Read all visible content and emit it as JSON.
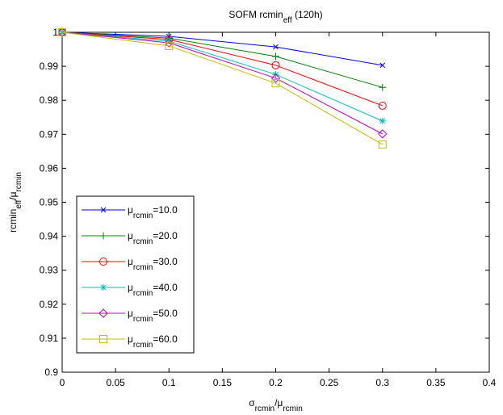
{
  "chart_data": {
    "type": "line",
    "title": [
      "SOFM rcmin",
      "eff",
      " (120h)"
    ],
    "xlabel": [
      "σ",
      "rcmin",
      "/μ",
      "rcmin"
    ],
    "ylabel": [
      "rcmin",
      "eff",
      "/μ",
      "rcmin"
    ],
    "x": [
      0,
      0.1,
      0.2,
      0.3
    ],
    "series": [
      {
        "name": [
          "μ",
          "rcmin",
          "=10.0"
        ],
        "color": "#0000ff",
        "marker": "x",
        "values": [
          1,
          0.9988,
          0.9957,
          0.9903
        ]
      },
      {
        "name": [
          "μ",
          "rcmin",
          "=20.0"
        ],
        "color": "#008000",
        "marker": "+",
        "values": [
          1,
          0.9983,
          0.9929,
          0.9838
        ]
      },
      {
        "name": [
          "μ",
          "rcmin",
          "=30.0"
        ],
        "color": "#ff0000",
        "marker": "o",
        "values": [
          1,
          0.9979,
          0.9903,
          0.9784
        ]
      },
      {
        "name": [
          "μ",
          "rcmin",
          "=40.0"
        ],
        "color": "#00bfbf",
        "marker": "*",
        "values": [
          1,
          0.9974,
          0.9876,
          0.9739
        ]
      },
      {
        "name": [
          "μ",
          "rcmin",
          "=50.0"
        ],
        "color": "#bf00bf",
        "marker": "d",
        "values": [
          1,
          0.9969,
          0.9865,
          0.9701
        ]
      },
      {
        "name": [
          "μ",
          "rcmin",
          "=60.0"
        ],
        "color": "#bfbf00",
        "marker": "s",
        "values": [
          1,
          0.996,
          0.985,
          0.967
        ]
      }
    ],
    "xlim": [
      0,
      0.4
    ],
    "xticks": [
      0,
      0.05,
      0.1,
      0.15,
      0.2,
      0.25,
      0.3,
      0.35,
      0.4
    ],
    "ylim": [
      0.9,
      1
    ],
    "yticks": [
      0.9,
      0.91,
      0.92,
      0.93,
      0.94,
      0.95,
      0.96,
      0.97,
      0.98,
      0.99,
      1
    ],
    "grid": false,
    "legend": "southwest"
  }
}
